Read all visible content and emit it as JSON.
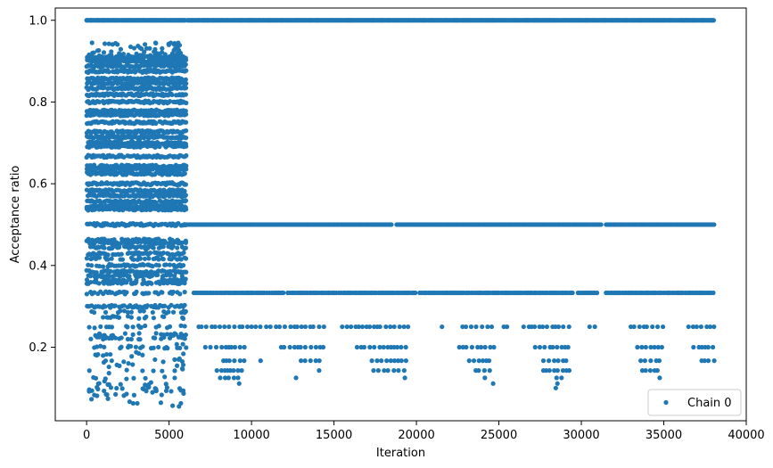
{
  "chart_data": {
    "type": "scatter",
    "title": "",
    "xlabel": "Iteration",
    "ylabel": "Acceptance ratio",
    "xlim": [
      -1900,
      40000
    ],
    "ylim": [
      0.02,
      1.03
    ],
    "xticks": [
      0,
      5000,
      10000,
      15000,
      20000,
      25000,
      30000,
      35000,
      40000
    ],
    "xtick_labels": [
      "0",
      "5000",
      "10000",
      "15000",
      "20000",
      "25000",
      "30000",
      "35000",
      "40000"
    ],
    "yticks": [
      0.2,
      0.4,
      0.6,
      0.8,
      1.0
    ],
    "ytick_labels": [
      "0.2",
      "0.4",
      "0.6",
      "0.8",
      "1.0"
    ],
    "grid": false,
    "legend": {
      "placement": "lower-right"
    },
    "color": "#1f77b4",
    "series": [
      {
        "name": "Chain 0",
        "marker": "circle",
        "bands": [
          {
            "y": 1.0,
            "segments": [
              [
                0,
                6000
              ],
              [
                6100,
                38100
              ]
            ],
            "density": "dense"
          },
          {
            "y": 0.5,
            "segments": [
              [
                6000,
                18500
              ],
              [
                18800,
                31200
              ],
              [
                31500,
                38100
              ]
            ],
            "density": "dense"
          },
          {
            "y": 0.333,
            "segments": [
              [
                6500,
                12000
              ],
              [
                12200,
                20000
              ],
              [
                20200,
                29500
              ],
              [
                29800,
                31000
              ],
              [
                31500,
                38100
              ]
            ],
            "density": "medium"
          },
          {
            "y": 0.25,
            "segments": [
              [
                6800,
                9800
              ],
              [
                10000,
                14600
              ],
              [
                15500,
                19500
              ],
              [
                21500,
                21600
              ],
              [
                22800,
                24700
              ],
              [
                25300,
                25600
              ],
              [
                26500,
                29500
              ],
              [
                30500,
                31000
              ],
              [
                33000,
                35000
              ],
              [
                36500,
                38100
              ]
            ],
            "density": "sparse"
          },
          {
            "y": 0.2,
            "segments": [
              [
                7200,
                9800
              ],
              [
                11800,
                14500
              ],
              [
                16400,
                19400
              ],
              [
                22600,
                24700
              ],
              [
                27200,
                29400
              ],
              [
                33400,
                35000
              ],
              [
                36800,
                38100
              ]
            ],
            "density": "sparse"
          },
          {
            "y": 0.167,
            "segments": [
              [
                8300,
                9600
              ],
              [
                10500,
                10600
              ],
              [
                13000,
                14200
              ],
              [
                17300,
                19400
              ],
              [
                23200,
                24600
              ],
              [
                27700,
                29400
              ],
              [
                33600,
                34900
              ],
              [
                37300,
                38100
              ]
            ],
            "density": "sparse"
          },
          {
            "y": 0.143,
            "segments": [
              [
                7900,
                9500
              ],
              [
                14000,
                14200
              ],
              [
                17400,
                19300
              ],
              [
                23600,
                24500
              ],
              [
                27700,
                29300
              ],
              [
                33700,
                34700
              ]
            ],
            "density": "sparse"
          },
          {
            "y": 0.125,
            "segments": [
              [
                8100,
                9300
              ],
              [
                12600,
                12800
              ],
              [
                19200,
                19400
              ],
              [
                24100,
                24200
              ],
              [
                28500,
                28800
              ],
              [
                34700,
                34800
              ]
            ],
            "density": "sparse"
          },
          {
            "y": 0.111,
            "segments": [
              [
                9200,
                9300
              ],
              [
                24600,
                24700
              ],
              [
                28500,
                28600
              ]
            ],
            "density": "sparse"
          },
          {
            "y": 0.1,
            "segments": [
              [
                28400,
                28500
              ]
            ],
            "density": "sparse"
          }
        ],
        "early_levels": [
          0.909,
          0.9,
          0.889,
          0.875,
          0.857,
          0.846,
          0.833,
          0.818,
          0.8,
          0.778,
          0.769,
          0.75,
          0.727,
          0.714,
          0.7,
          0.692,
          0.667,
          0.643,
          0.636,
          0.625,
          0.6,
          0.583,
          0.571,
          0.556,
          0.545,
          0.538,
          0.5,
          0.462,
          0.455,
          0.444,
          0.429,
          0.417,
          0.4,
          0.385,
          0.375,
          0.364,
          0.357,
          0.333,
          0.3,
          0.286,
          0.273,
          0.25,
          0.231,
          0.222,
          0.2,
          0.182,
          0.167,
          0.154,
          0.143,
          0.125,
          0.111,
          0.1,
          0.091,
          0.083
        ],
        "early_x_range": [
          0,
          6000
        ],
        "early_jitter_top": [
          0.9,
          0.945
        ]
      }
    ]
  }
}
